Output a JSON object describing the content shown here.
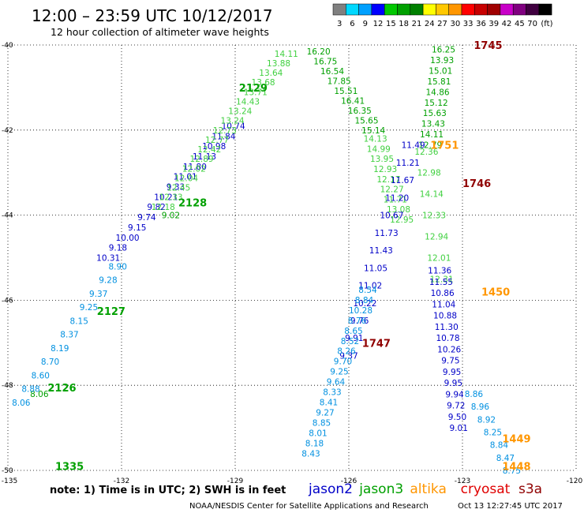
{
  "header": {
    "title": "12:00 – 23:59 UTC 10/12/2017",
    "subtitle": "12 hour collection of altimeter wave heights"
  },
  "colorbar": {
    "colors": [
      "#808080",
      "#00d8ff",
      "#00a0ff",
      "#0000ff",
      "#00c800",
      "#00a000",
      "#008000",
      "#ffff00",
      "#ffc800",
      "#ff9600",
      "#ff0000",
      "#c80000",
      "#a00000",
      "#c800c8",
      "#800080",
      "#400040",
      "#000000"
    ],
    "labels": [
      "3",
      "6",
      "9",
      "12",
      "15",
      "18",
      "21",
      "24",
      "27",
      "30",
      "33",
      "36",
      "39",
      "42",
      "45",
      "70",
      "(ft)"
    ]
  },
  "footer": {
    "note": "note:  1) Time is in UTC;  2) SWH is in feet",
    "credit": "NOAA/NESDIS Center for Satellite Applications and Research",
    "timestamp": "Oct 13 12:27:45 UTC 2017"
  },
  "legend": [
    {
      "name": "jason2",
      "color": "#0000c8"
    },
    {
      "name": "jason3",
      "color": "#00a000"
    },
    {
      "name": "altika",
      "color": "#ff9600"
    },
    {
      "name": "cryosat",
      "color": "#e00000"
    },
    {
      "name": "s3a",
      "color": "#900000"
    }
  ],
  "chart_data": {
    "type": "scatter",
    "xlim": [
      -135,
      -120
    ],
    "ylim": [
      -50,
      -40
    ],
    "x_ticks": [
      "-135",
      "-132",
      "-129",
      "-126",
      "-123",
      "-120"
    ],
    "y_ticks": [
      "-40",
      "-42",
      "-44",
      "-46",
      "-48",
      "-50"
    ],
    "grid": true,
    "tracks": [
      {
        "color": "#00a000",
        "lon0": -134.17,
        "lat0": -48.2,
        "lon1": -130.7,
        "lat1": -44.0,
        "values": [
          "8.06",
          "9.02"
        ],
        "label": "2126",
        "labelColor": "#00a000"
      },
      {
        "color": "#0090e0",
        "lon0": -134.65,
        "lat0": -48.4,
        "lon1": -132.1,
        "lat1": -45.2,
        "values": [
          "8.06",
          "8.88",
          "8.60",
          "8.70",
          "8.19",
          "8.37",
          "8.15",
          "9.25",
          "9.37",
          "9.28",
          "8.90"
        ]
      },
      {
        "color": "#0000c8",
        "lon0": -132.35,
        "lat0": -45.0,
        "lon1": -129.05,
        "lat1": -41.9,
        "values": [
          "10.31",
          "9.18",
          "10.00",
          "9.15",
          "9.74",
          "9.82",
          "10.21",
          "9.33",
          "11.01",
          "11.80",
          "11.13",
          "10.98",
          "11.84",
          "10.74"
        ]
      },
      {
        "color": "#40d040",
        "lon0": -130.9,
        "lat0": -43.8,
        "lon1": -127.65,
        "lat1": -40.2,
        "values": [
          "12.18",
          "12.33",
          "12.45",
          "12.04",
          "12.02",
          "12.89",
          "12.42",
          "12.77",
          "12.73",
          "13.24",
          "13.24",
          "14.43",
          "13.71",
          "13.68",
          "13.64",
          "13.88",
          "14.11"
        ]
      },
      {
        "color": "#00a000",
        "lon0": -126.8,
        "lat0": -40.15,
        "lon1": -125.35,
        "lat1": -42.0,
        "values": [
          "16.20",
          "16.75",
          "16.54",
          "17.85",
          "15.51",
          "16.41",
          "16.35",
          "15.65",
          "15.14"
        ]
      },
      {
        "color": "#40d040",
        "lon0": -125.3,
        "lat0": -42.2,
        "lon1": -124.6,
        "lat1": -44.1,
        "values": [
          "14.13",
          "14.99",
          "13.95",
          "12.93",
          "12.17",
          "12.27",
          "11.71",
          "13.08",
          "12.95"
        ]
      },
      {
        "color": "#00a000",
        "lon0": -123.5,
        "lat0": -40.1,
        "lon1": -123.85,
        "lat1": -42.35,
        "values": [
          "16.25",
          "13.93",
          "15.01",
          "15.81",
          "14.86",
          "15.12",
          "15.63",
          "13.43",
          "14.11",
          "12.79"
        ]
      },
      {
        "color": "#40d040",
        "lon0": -123.95,
        "lat0": -42.5,
        "lon1": -123.55,
        "lat1": -45.5,
        "values": [
          "12.36",
          "12.98",
          "14.14",
          "12.33",
          "12.94",
          "12.01",
          "12.31"
        ]
      },
      {
        "color": "#0000c8",
        "lon0": -124.3,
        "lat0": -42.35,
        "lon1": -126.0,
        "lat1": -47.3,
        "values": [
          "11.49",
          "11.21",
          "11.67",
          "11.20",
          "10.67",
          "11.73",
          "11.43",
          "11.05",
          "11.02",
          "10.22",
          "9.76",
          "9.91",
          "9.37"
        ]
      },
      {
        "color": "#0000c8",
        "lon0": -123.6,
        "lat0": -45.3,
        "lon1": -123.1,
        "lat1": -49.0,
        "values": [
          "11.36",
          "11.55",
          "10.86",
          "11.04",
          "10.88",
          "11.30",
          "10.78",
          "10.26",
          "9.75",
          "9.95",
          "9.95",
          "9.94",
          "9.72",
          "9.50",
          "9.01"
        ]
      },
      {
        "color": "#0090e0",
        "lon0": -125.5,
        "lat0": -45.75,
        "lon1": -127.0,
        "lat1": -49.6,
        "values": [
          "8.54",
          "8.84",
          "10.28",
          "8.76",
          "8.65",
          "8.52",
          "8.26",
          "9.70",
          "9.25",
          "9.64",
          "8.33",
          "8.41",
          "9.27",
          "8.85",
          "8.01",
          "8.18",
          "8.43"
        ]
      },
      {
        "color": "#0090e0",
        "lon0": -122.7,
        "lat0": -48.2,
        "lon1": -121.7,
        "lat1": -50.0,
        "values": [
          "8.86",
          "8.96",
          "8.92",
          "8.25",
          "8.84",
          "8.47",
          "8.75"
        ]
      }
    ],
    "pass_labels": [
      {
        "text": "2129",
        "color": "#00a000",
        "lon": -128.9,
        "lat": -41.0
      },
      {
        "text": "2128",
        "color": "#00a000",
        "lon": -130.5,
        "lat": -43.7
      },
      {
        "text": "2127",
        "color": "#00a000",
        "lon": -132.65,
        "lat": -46.25
      },
      {
        "text": "2126",
        "color": "#00a000",
        "lon": -133.95,
        "lat": -48.05
      },
      {
        "text": "1335",
        "color": "#00a000",
        "lon": -133.75,
        "lat": -49.9
      },
      {
        "text": "1745",
        "color": "#900000",
        "lon": -122.7,
        "lat": -40.0
      },
      {
        "text": "1751",
        "color": "#ff9600",
        "lon": -123.85,
        "lat": -42.35
      },
      {
        "text": "1746",
        "color": "#900000",
        "lon": -123.0,
        "lat": -43.25
      },
      {
        "text": "1747",
        "color": "#900000",
        "lon": -125.65,
        "lat": -47.0
      },
      {
        "text": "1450",
        "color": "#ff9600",
        "lon": -122.5,
        "lat": -45.8
      },
      {
        "text": "1449",
        "color": "#ff9600",
        "lon": -121.95,
        "lat": -49.25
      },
      {
        "text": "1448",
        "color": "#ff9600",
        "lon": -121.95,
        "lat": -49.9
      }
    ]
  }
}
